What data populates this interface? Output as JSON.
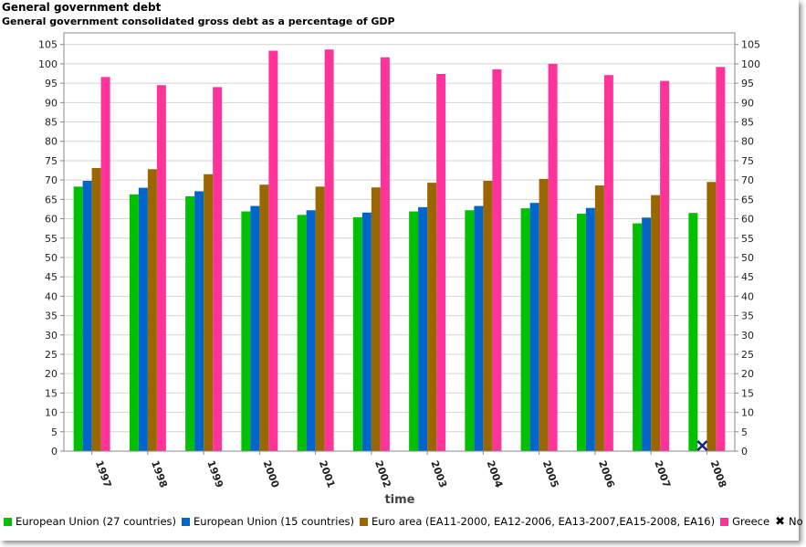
{
  "header": {
    "title": "General government debt",
    "subtitle": "General government consolidated gross debt as a percentage of GDP"
  },
  "chart_data": {
    "type": "bar",
    "title": "General government debt",
    "subtitle": "General government consolidated gross debt as a percentage of GDP",
    "xlabel": "time",
    "ylabel": "",
    "ylim": [
      0,
      108
    ],
    "ytick_step": 5,
    "ytick_max": 105,
    "grid": true,
    "legend_position": "bottom",
    "categories": [
      "1997",
      "1998",
      "1999",
      "2000",
      "2001",
      "2002",
      "2003",
      "2004",
      "2005",
      "2006",
      "2007",
      "2008"
    ],
    "series": [
      {
        "name": "European Union (27 countries)",
        "color": "#00c000",
        "values": [
          68.3,
          66.3,
          65.8,
          61.9,
          61.0,
          60.4,
          61.9,
          62.2,
          62.7,
          61.3,
          58.8,
          61.5
        ]
      },
      {
        "name": "European Union (15 countries)",
        "color": "#0066cc",
        "values": [
          69.8,
          68.0,
          67.1,
          63.3,
          62.2,
          61.6,
          63.0,
          63.3,
          64.1,
          62.8,
          60.3,
          null
        ]
      },
      {
        "name": "Euro area (EA11-2000, EA12-2006, EA13-2007,EA15-2008, EA16)",
        "color": "#996600",
        "values": [
          73.1,
          72.8,
          71.5,
          68.8,
          68.3,
          68.1,
          69.3,
          69.8,
          70.3,
          68.6,
          66.1,
          69.5
        ]
      },
      {
        "name": "Greece",
        "color": "#ff3399",
        "values": [
          96.6,
          94.5,
          94.0,
          103.4,
          103.7,
          101.7,
          97.4,
          98.6,
          100.0,
          97.1,
          95.6,
          99.2
        ]
      }
    ],
    "no_data": {
      "label": "No data",
      "symbol": "✖",
      "color": "#1a237e",
      "points": [
        {
          "category": "2008",
          "series": "European Union (15 countries)"
        }
      ]
    }
  }
}
